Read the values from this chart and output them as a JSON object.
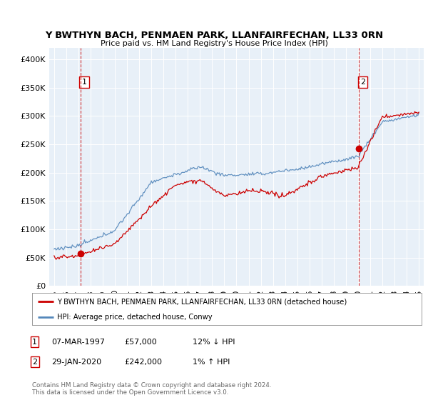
{
  "title": "Y BWTHYN BACH, PENMAEN PARK, LLANFAIRFECHAN, LL33 0RN",
  "subtitle": "Price paid vs. HM Land Registry's House Price Index (HPI)",
  "ylim": [
    0,
    420000
  ],
  "yticks": [
    0,
    50000,
    100000,
    150000,
    200000,
    250000,
    300000,
    350000,
    400000
  ],
  "ytick_labels": [
    "£0",
    "£50K",
    "£100K",
    "£150K",
    "£200K",
    "£250K",
    "£300K",
    "£350K",
    "£400K"
  ],
  "sale1_date": 1997.18,
  "sale1_price": 57000,
  "sale1_label": "1",
  "sale2_date": 2020.08,
  "sale2_price": 242000,
  "sale2_label": "2",
  "hpi_color": "#5588bb",
  "price_color": "#cc0000",
  "dashed_color": "#cc0000",
  "plot_bg": "#e8f0f8",
  "legend_text1": "Y BWTHYN BACH, PENMAEN PARK, LLANFAIRFECHAN, LL33 0RN (detached house)",
  "legend_text2": "HPI: Average price, detached house, Conwy",
  "note1_label": "1",
  "note1_date": "07-MAR-1997",
  "note1_price": "£57,000",
  "note1_hpi": "12% ↓ HPI",
  "note2_label": "2",
  "note2_date": "29-JAN-2020",
  "note2_price": "£242,000",
  "note2_hpi": "1% ↑ HPI",
  "footer": "Contains HM Land Registry data © Crown copyright and database right 2024.\nThis data is licensed under the Open Government Licence v3.0."
}
